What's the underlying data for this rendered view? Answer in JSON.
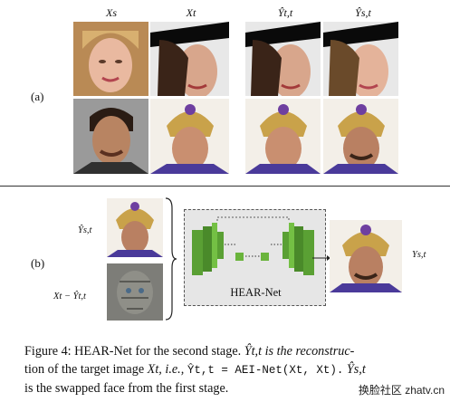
{
  "panel_a": {
    "label": "(a)",
    "columns": [
      {
        "label": "Xs"
      },
      {
        "label": "Xt"
      },
      {
        "label": "Ŷt,t"
      },
      {
        "label": "Ŷs,t"
      }
    ]
  },
  "panel_b": {
    "label": "(b)",
    "inputs": [
      {
        "label": "Ŷs,t"
      },
      {
        "label": "Xt − Ŷt,t"
      }
    ],
    "network_label": "HEAR-Net",
    "output_label": "Ys,t"
  },
  "caption": {
    "prefix": "Figure 4: HEAR-Net for the second stage.",
    "line1_math": "Ŷt,t is the reconstruc-",
    "line2_a": "tion of the target image",
    "line2_var": "Xt,",
    "line2_ie": "i.e.,",
    "line2_eq": "Ŷt,t = AEI-Net(Xt, Xt).",
    "line2_end": "Ŷs,t",
    "line3": "is the swapped face from the first stage."
  },
  "watermark": "换脸社区 zhatv.cn"
}
